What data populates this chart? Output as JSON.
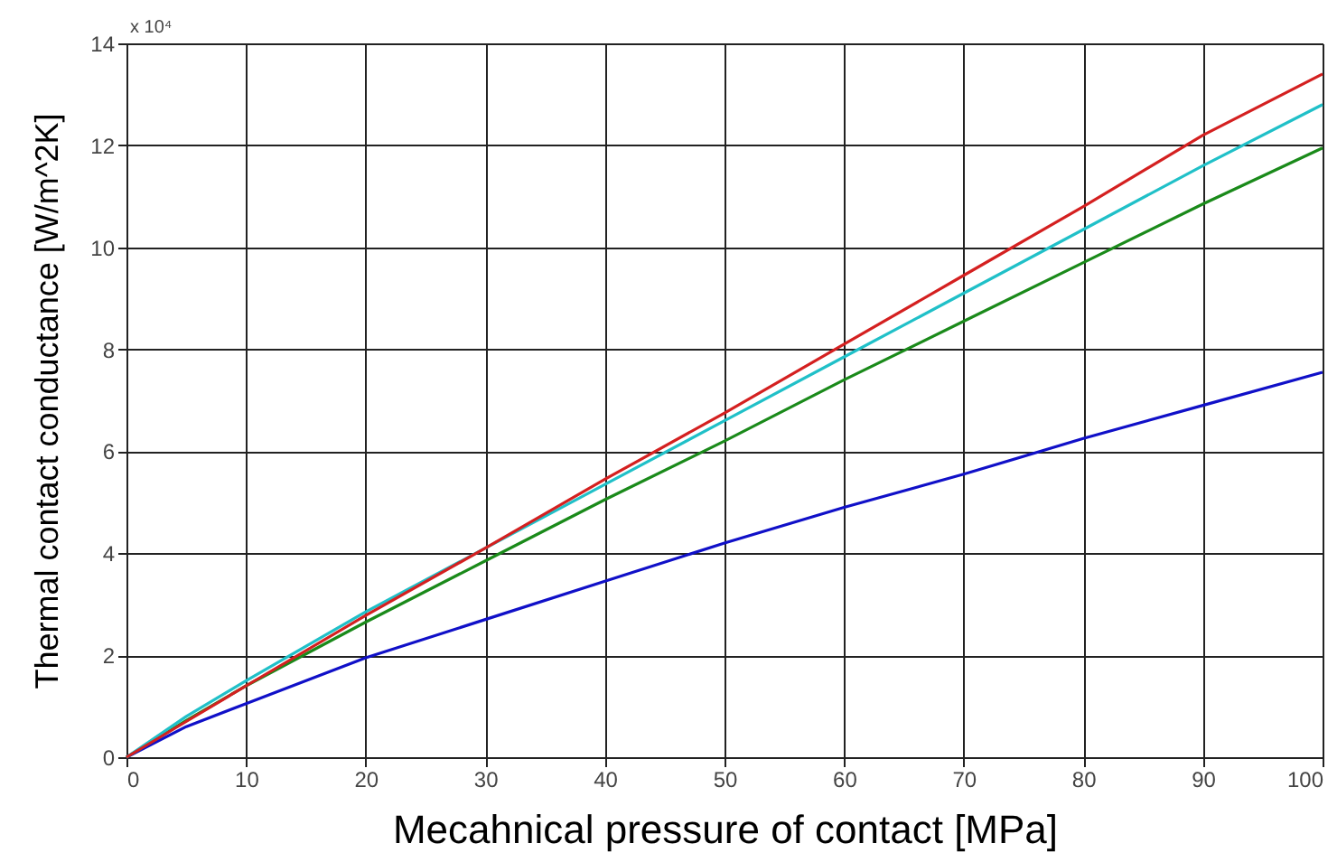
{
  "chart_data": {
    "type": "line",
    "xlabel": "Mecahnical pressure of contact [MPa]",
    "ylabel": "Thermal contact conductance [W/m^2K]",
    "annotations": [
      "x 10⁴"
    ],
    "x": [
      0,
      5,
      10,
      20,
      30,
      40,
      50,
      60,
      70,
      80,
      90,
      100
    ],
    "series": [
      {
        "color": "#d42020",
        "values": [
          0,
          0.7,
          1.4,
          2.78,
          4.1,
          5.45,
          6.75,
          8.1,
          9.45,
          10.8,
          12.2,
          13.4
        ]
      },
      {
        "color": "#20c0c8",
        "values": [
          0,
          0.8,
          1.5,
          2.85,
          4.1,
          5.35,
          6.6,
          7.85,
          9.1,
          10.35,
          11.6,
          12.8
        ]
      },
      {
        "color": "#1a8a1a",
        "values": [
          0,
          0.72,
          1.4,
          2.65,
          3.85,
          5.05,
          6.2,
          7.4,
          8.55,
          9.7,
          10.85,
          11.95
        ]
      },
      {
        "color": "#1010c8",
        "values": [
          0,
          0.6,
          1.05,
          1.95,
          2.7,
          3.45,
          4.2,
          4.9,
          5.55,
          6.25,
          6.9,
          7.55
        ]
      }
    ],
    "xlim": [
      0,
      100
    ],
    "xticks": [
      0,
      10,
      20,
      30,
      40,
      50,
      60,
      70,
      80,
      90,
      100
    ],
    "ylim": [
      0,
      14
    ],
    "yticks": [
      0,
      2,
      4,
      6,
      8,
      10,
      12,
      14
    ],
    "grid": true,
    "legend": false,
    "marker": "none",
    "line_style": "solid"
  }
}
